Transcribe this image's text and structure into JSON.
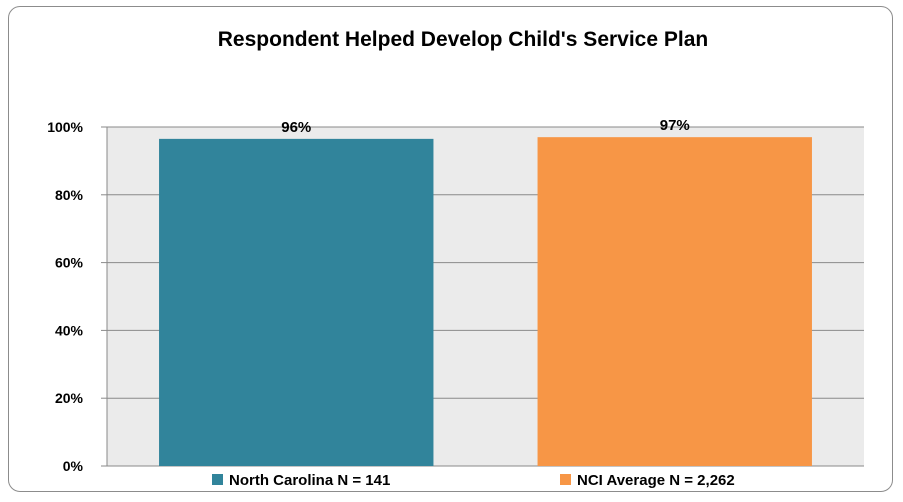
{
  "chart_data": {
    "type": "bar",
    "title": "Respondent Helped Develop Child's Service Plan",
    "categories": [
      "North Carolina N = 141",
      "NCI Average N = 2,262"
    ],
    "values": [
      96.5,
      97
    ],
    "data_labels": [
      "96%",
      "97%"
    ],
    "colors": [
      "#31849B",
      "#F79646"
    ],
    "ylim": [
      0,
      100
    ],
    "yticks": [
      0,
      20,
      40,
      60,
      80,
      100
    ],
    "ytick_labels": [
      "0%",
      "20%",
      "40%",
      "60%",
      "80%",
      "100%"
    ],
    "grid": true,
    "plot_background": "#EBEBEB",
    "legend": {
      "placement": "bottom",
      "entries": [
        "North Carolina N = 141",
        "NCI Average N = 2,262"
      ]
    }
  }
}
